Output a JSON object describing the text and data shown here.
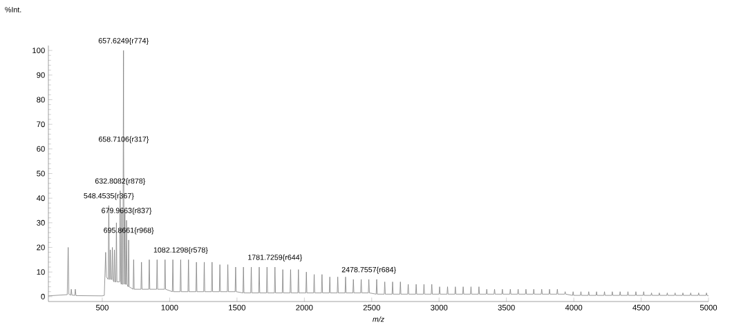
{
  "chart_data": {
    "type": "line",
    "xlabel": "m/z",
    "ylabel": "%Int.",
    "xlim": [
      100,
      5000
    ],
    "ylim": [
      -2,
      102
    ],
    "xticks": [
      500,
      1000,
      1500,
      2000,
      2500,
      3000,
      3500,
      4000,
      4500,
      5000
    ],
    "yticks": [
      0,
      10,
      20,
      30,
      40,
      50,
      60,
      70,
      80,
      90,
      100
    ],
    "series": [
      {
        "color": "#7f7f7f",
        "x": [
          100,
          240,
          247,
          252,
          266,
          270,
          275,
          296,
          300,
          305,
          500,
          515,
          525,
          530,
          544,
          548.4535,
          553,
          556,
          560,
          564,
          571,
          575,
          579,
          586,
          590,
          594,
          601,
          605,
          609,
          628,
          632.8082,
          637,
          641,
          645,
          649,
          653,
          657.6249,
          658.7106,
          663,
          668,
          672,
          676,
          679.9663,
          684,
          692,
          695.8661,
          700,
          729,
          733,
          737,
          787,
          791,
          795,
          845,
          849,
          853,
          903,
          907,
          911,
          962,
          966,
          970,
          1020,
          1024,
          1028,
          1078,
          1082.1298,
          1086,
          1136,
          1140,
          1144,
          1195,
          1199,
          1203,
          1253,
          1257,
          1261,
          1311,
          1315,
          1319,
          1369,
          1373,
          1377,
          1428,
          1432,
          1436,
          1486,
          1490,
          1494,
          1544,
          1548,
          1552,
          1602,
          1606,
          1610,
          1661,
          1665,
          1669,
          1719,
          1723,
          1727,
          1778,
          1781.7259,
          1786,
          1836,
          1840,
          1844,
          1894,
          1898,
          1902,
          1952,
          1956,
          1960,
          2011,
          2015,
          2019,
          2069,
          2073,
          2077,
          2127,
          2131,
          2135,
          2185,
          2189,
          2193,
          2244,
          2248,
          2252,
          2302,
          2306,
          2310,
          2360,
          2364,
          2368,
          2418,
          2422,
          2426,
          2475,
          2478.7557,
          2483,
          2533,
          2537,
          2541,
          2593,
          2597,
          2601,
          2651,
          2655,
          2659,
          2709,
          2713,
          2717,
          2767,
          2771,
          2775,
          2826,
          2830,
          2834,
          2884,
          2888,
          2892,
          2942,
          2946,
          2950,
          3000,
          3004,
          3008,
          3059,
          3063,
          3067,
          3117,
          3121,
          3125,
          3175,
          3179,
          3183,
          3233,
          3237,
          3241,
          3292,
          3296,
          3300,
          3350,
          3354,
          3358,
          3408,
          3412,
          3416,
          3466,
          3470,
          3474,
          3525,
          3529,
          3533,
          3583,
          3587,
          3591,
          3641,
          3645,
          3649,
          3699,
          3703,
          3707,
          3758,
          3762,
          3766,
          3816,
          3820,
          3824,
          3874,
          3878,
          3882,
          3932,
          3936,
          3940,
          3991,
          3995,
          3999,
          4049,
          4053,
          4057,
          4107,
          4111,
          4115,
          4165,
          4169,
          4173,
          4224,
          4228,
          4232,
          4282,
          4286,
          4290,
          4340,
          4344,
          4348,
          4398,
          4402,
          4406,
          4457,
          4461,
          4465,
          4515,
          4519,
          4523,
          4573,
          4577,
          4581,
          4631,
          4635,
          4639,
          4690,
          4694,
          4698,
          4748,
          4752,
          4756,
          4806,
          4810,
          4814,
          4864,
          4868,
          4872,
          4923,
          4927,
          4931,
          4981,
          4985,
          4989,
          5000
        ],
        "values": [
          0.3,
          0.8,
          20,
          1,
          0.6,
          3,
          0.6,
          0.5,
          3,
          0.4,
          0.3,
          0.5,
          18,
          8,
          7,
          37,
          7,
          7,
          19,
          7,
          7,
          20,
          7,
          6,
          19,
          6,
          6,
          30,
          6,
          6,
          43,
          6,
          5,
          35,
          5,
          5,
          100,
          60,
          5,
          34,
          5,
          5,
          31,
          5,
          4,
          23,
          4,
          3,
          15,
          3,
          3,
          14,
          3,
          3,
          15,
          3,
          3,
          15,
          3,
          3,
          15,
          3,
          2,
          15,
          2,
          2,
          15,
          2,
          2,
          15,
          2,
          2,
          14,
          2,
          2,
          14,
          2,
          2,
          14,
          2,
          2,
          13,
          2,
          2,
          13,
          2,
          2,
          12,
          2,
          1.5,
          12,
          1.5,
          1.5,
          12,
          1.5,
          1.5,
          12,
          1.5,
          1.5,
          12,
          1.5,
          1.5,
          12,
          1.5,
          1.5,
          11,
          1.5,
          1.5,
          11,
          1.5,
          1.5,
          11,
          1.5,
          1.5,
          10,
          1.5,
          1.5,
          9,
          1.5,
          1.5,
          9,
          1.5,
          1.5,
          8,
          1.5,
          1.5,
          8,
          1.5,
          1.5,
          8,
          1.5,
          1.5,
          7,
          1.5,
          1.5,
          7,
          1.5,
          1.5,
          7,
          1.5,
          1,
          7,
          1,
          1,
          6,
          1,
          1,
          6,
          1,
          1,
          6,
          1,
          1,
          5,
          1,
          1,
          5,
          1,
          1,
          5,
          1,
          1,
          5,
          1,
          1,
          4,
          1,
          1,
          4,
          1,
          1,
          4,
          1,
          1,
          4,
          1,
          1,
          4,
          1,
          1,
          4,
          1,
          1,
          3,
          1,
          1,
          3,
          1,
          1,
          3,
          1,
          1,
          3,
          1,
          1,
          3,
          1,
          1,
          3,
          1,
          1,
          3,
          1,
          1,
          3,
          1,
          1,
          3,
          1,
          1,
          3,
          1,
          1,
          2,
          1,
          0.5,
          2,
          0.5,
          0.5,
          2,
          0.5,
          0.5,
          2,
          0.5,
          0.5,
          2,
          0.5,
          0.5,
          2,
          0.5,
          0.5,
          2,
          0.5,
          0.5,
          2,
          0.5,
          0.5,
          2,
          0.5,
          0.5,
          2,
          0.5,
          0.5,
          2,
          0.5,
          0.5,
          1.5,
          0.5,
          0.5,
          1.5,
          0.5,
          0.5,
          1.5,
          0.5,
          0.5,
          1.5,
          0.5,
          0.5,
          1.5,
          0.5,
          0.5,
          1.5,
          0.5,
          0.5,
          1.5,
          0.5,
          0.5,
          1.5,
          0.5,
          0.3
        ]
      }
    ],
    "annotations": [
      {
        "text": "657.6249{r774}",
        "x": 657.6249,
        "y": 100
      },
      {
        "text": "658.7106{r317}",
        "x": 658.7106,
        "y": 60
      },
      {
        "text": "632.8082{r878}",
        "x": 632.8082,
        "y": 43
      },
      {
        "text": "548.4535{r367}",
        "x": 548.4535,
        "y": 37
      },
      {
        "text": "679.9663{r837}",
        "x": 679.9663,
        "y": 31
      },
      {
        "text": "695.8661{r968}",
        "x": 695.8661,
        "y": 23
      },
      {
        "text": "1082.1298{r578}",
        "x": 1082.1298,
        "y": 15
      },
      {
        "text": "1781.7259{r644}",
        "x": 1781.7259,
        "y": 12
      },
      {
        "text": "2478.7557{r684}",
        "x": 2478.7557,
        "y": 7
      }
    ]
  }
}
